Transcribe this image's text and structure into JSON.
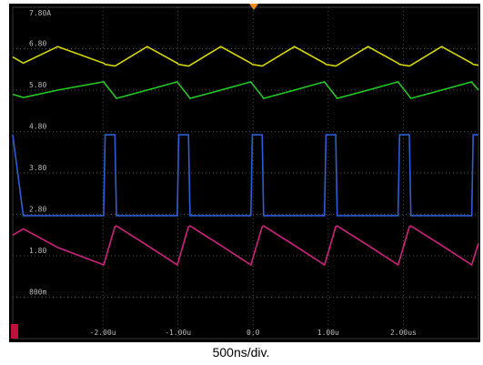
{
  "chart_data": {
    "type": "line",
    "x_label": "500ns/div.",
    "xlim": [
      -3.2,
      3.0
    ],
    "ylim": [
      -0.2,
      7.8
    ],
    "grid": true,
    "xticks": [
      {
        "value": -2,
        "label": "-2.00u"
      },
      {
        "value": -1,
        "label": "-1.00u"
      },
      {
        "value": 0,
        "label": "0.0"
      },
      {
        "value": 1,
        "label": "1.00u"
      },
      {
        "value": 2,
        "label": "2.00us"
      }
    ],
    "yticks": [
      {
        "value": 7.8,
        "label": "7.80A"
      },
      {
        "value": 6.8,
        "label": "6.80"
      },
      {
        "value": 5.8,
        "label": "5.80"
      },
      {
        "value": 4.8,
        "label": "4.80"
      },
      {
        "value": 3.8,
        "label": "3.80"
      },
      {
        "value": 2.8,
        "label": "2.80"
      },
      {
        "value": 1.8,
        "label": "1.80"
      },
      {
        "value": 0.8,
        "label": "800m"
      }
    ],
    "x": [
      -3.2,
      -3.06,
      -2.6,
      -1.99,
      -1.97,
      -1.84,
      -1.82,
      -1.41,
      -1.01,
      -0.99,
      -0.86,
      -0.84,
      -0.43,
      -0.03,
      -0.01,
      0.12,
      0.14,
      0.55,
      0.95,
      0.97,
      1.1,
      1.12,
      1.53,
      1.93,
      1.95,
      2.08,
      2.1,
      2.51,
      2.91,
      2.93,
      3.0
    ],
    "series": [
      {
        "color": "#d8d800",
        "values": [
          6.6,
          6.45,
          6.85,
          6.45,
          6.42,
          6.38,
          6.4,
          6.85,
          6.45,
          6.42,
          6.38,
          6.4,
          6.85,
          6.45,
          6.42,
          6.38,
          6.4,
          6.85,
          6.45,
          6.42,
          6.38,
          6.4,
          6.85,
          6.45,
          6.42,
          6.38,
          6.4,
          6.85,
          6.45,
          6.42,
          6.4
        ]
      },
      {
        "color": "#22cc22",
        "values": [
          5.7,
          5.62,
          5.8,
          6.0,
          5.95,
          5.65,
          5.6,
          5.8,
          6.0,
          5.95,
          5.65,
          5.6,
          5.8,
          6.0,
          5.95,
          5.65,
          5.6,
          5.8,
          6.0,
          5.95,
          5.65,
          5.6,
          5.8,
          6.0,
          5.95,
          5.65,
          5.6,
          5.8,
          6.0,
          5.95,
          5.8
        ]
      },
      {
        "color": "#2a5fd6",
        "values": [
          4.72,
          2.77,
          2.77,
          2.77,
          4.72,
          4.72,
          2.77,
          2.77,
          2.77,
          4.72,
          4.72,
          2.77,
          2.77,
          2.77,
          4.72,
          4.72,
          2.77,
          2.77,
          2.77,
          4.72,
          4.72,
          2.77,
          2.77,
          2.77,
          4.72,
          4.72,
          2.77,
          2.77,
          2.77,
          4.72,
          4.72
        ]
      },
      {
        "color": "#d0237f",
        "values": [
          2.3,
          2.45,
          2.0,
          1.58,
          1.7,
          2.5,
          2.52,
          2.05,
          1.58,
          1.7,
          2.5,
          2.52,
          2.05,
          1.58,
          1.7,
          2.5,
          2.52,
          2.05,
          1.58,
          1.7,
          2.5,
          2.52,
          2.05,
          1.58,
          1.7,
          2.5,
          2.52,
          2.05,
          1.58,
          1.7,
          2.1
        ]
      }
    ]
  }
}
